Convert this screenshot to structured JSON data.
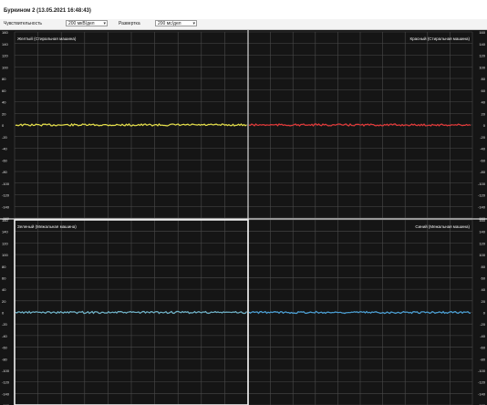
{
  "window": {
    "title": "Буркином  2 (13.05.2021  16:48:43)"
  },
  "toolbar": {
    "sensitivity_label": "Чувствительность",
    "sensitivity_value": "200 мкВ/дел",
    "sweep_label": "Развертка",
    "sweep_value": "200 мс/дел"
  },
  "axis": {
    "left_ticks": [
      "160",
      "140",
      "120",
      "100",
      "80",
      "60",
      "40",
      "20",
      "0",
      "-20",
      "-40",
      "-60",
      "-80",
      "-100",
      "-120",
      "-140",
      "-160"
    ],
    "right_ticks": [
      "160",
      "140",
      "120",
      "100",
      "80",
      "60",
      "40",
      "20",
      "0",
      "-20",
      "-40",
      "-60",
      "-80",
      "-100",
      "-120",
      "-140",
      "-160"
    ]
  },
  "panels": [
    {
      "label": "Желтый (Стиральная машина)",
      "label_align": "left",
      "trace_color": "#e6e04a"
    },
    {
      "label": "Красный (Стиральная машина)",
      "label_align": "right",
      "trace_color": "#e33a3a"
    },
    {
      "label": "Зеленый (Межальная машина)",
      "label_align": "left",
      "trace_color": "#6fb3c9"
    },
    {
      "label": "Синий (Межальная машина)",
      "label_align": "right",
      "trace_color": "#4aa0d6"
    }
  ],
  "colors": {
    "plot_background": "#151515",
    "grid": "#4a4a4a",
    "divider": "#d8d8d8",
    "axis_text": "#e0e0e0"
  }
}
